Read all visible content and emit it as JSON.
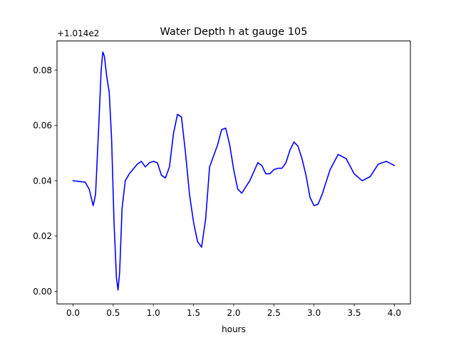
{
  "chart_data": {
    "type": "line",
    "title": "Water Depth h at gauge 105",
    "xlabel": "hours",
    "ylabel": "",
    "offset_label": "+1.014e2",
    "xlim": [
      -0.2,
      4.2
    ],
    "ylim": [
      -0.0045,
      0.0905
    ],
    "xticks": [
      0.0,
      0.5,
      1.0,
      1.5,
      2.0,
      2.5,
      3.0,
      3.5,
      4.0
    ],
    "xtick_labels": [
      "0.0",
      "0.5",
      "1.0",
      "1.5",
      "2.0",
      "2.5",
      "3.0",
      "3.5",
      "4.0"
    ],
    "yticks": [
      0.0,
      0.02,
      0.04,
      0.06,
      0.08
    ],
    "ytick_labels": [
      "0.00",
      "0.02",
      "0.04",
      "0.06",
      "0.08"
    ],
    "grid": false,
    "series": [
      {
        "color": "#0000ff",
        "x": [
          0.0,
          0.15,
          0.2,
          0.25,
          0.28,
          0.32,
          0.35,
          0.37,
          0.39,
          0.42,
          0.45,
          0.48,
          0.51,
          0.54,
          0.56,
          0.58,
          0.61,
          0.65,
          0.7,
          0.8,
          0.85,
          0.9,
          0.95,
          1.0,
          1.05,
          1.1,
          1.15,
          1.2,
          1.25,
          1.3,
          1.35,
          1.4,
          1.45,
          1.5,
          1.55,
          1.6,
          1.65,
          1.7,
          1.75,
          1.8,
          1.85,
          1.9,
          1.95,
          2.0,
          2.05,
          2.1,
          2.2,
          2.3,
          2.35,
          2.4,
          2.45,
          2.5,
          2.55,
          2.6,
          2.65,
          2.7,
          2.75,
          2.8,
          2.85,
          2.9,
          2.95,
          3.0,
          3.05,
          3.1,
          3.2,
          3.3,
          3.4,
          3.5,
          3.6,
          3.7,
          3.8,
          3.9,
          4.0
        ],
        "y": [
          0.04,
          0.0395,
          0.037,
          0.031,
          0.035,
          0.06,
          0.08,
          0.0865,
          0.085,
          0.0775,
          0.072,
          0.055,
          0.025,
          0.005,
          0.0005,
          0.007,
          0.03,
          0.04,
          0.0425,
          0.046,
          0.047,
          0.045,
          0.0465,
          0.047,
          0.0465,
          0.042,
          0.041,
          0.045,
          0.057,
          0.064,
          0.063,
          0.05,
          0.035,
          0.025,
          0.018,
          0.016,
          0.026,
          0.045,
          0.049,
          0.053,
          0.0585,
          0.059,
          0.053,
          0.044,
          0.037,
          0.0355,
          0.04,
          0.0465,
          0.0455,
          0.0425,
          0.0425,
          0.044,
          0.0445,
          0.0445,
          0.0465,
          0.051,
          0.054,
          0.0525,
          0.048,
          0.042,
          0.034,
          0.031,
          0.0315,
          0.035,
          0.044,
          0.0495,
          0.048,
          0.0425,
          0.04,
          0.0415,
          0.046,
          0.047,
          0.0455
        ]
      }
    ]
  }
}
